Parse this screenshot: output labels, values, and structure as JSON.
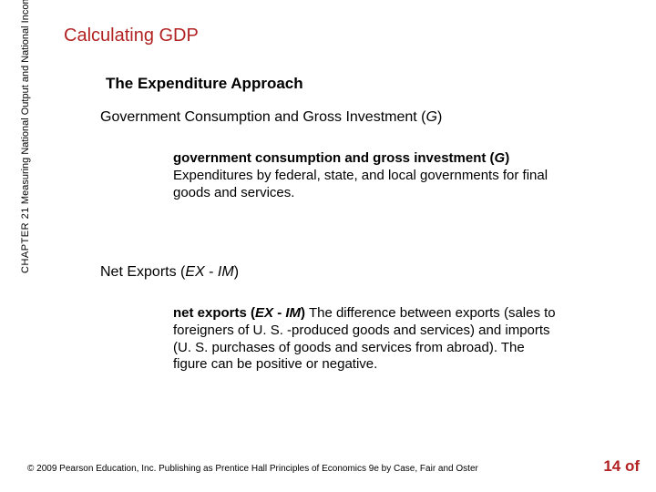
{
  "colors": {
    "accent": "#b22222",
    "text": "#000000",
    "background": "#ffffff"
  },
  "sidebar": {
    "chapter_label": "CHAPTER 21",
    "chapter_title": "Measuring National Output and National Income"
  },
  "title": "Calculating GDP",
  "subtitle": "The Expenditure Approach",
  "section1": {
    "heading_plain": "Government Consumption and Gross Investment (",
    "heading_var": "G",
    "heading_tail": ")",
    "term_plain": "government consumption and gross investment (",
    "term_var": "G",
    "term_tail": ")",
    "body": "  Expenditures by federal, state, and local governments for final goods and services."
  },
  "section2": {
    "heading_plain": "Net Exports (",
    "heading_var1": "EX",
    "heading_mid": " - ",
    "heading_var2": "IM",
    "heading_tail": ")",
    "term_plain": "net exports (",
    "term_var1": "EX",
    "term_mid": " - ",
    "term_var2": "IM",
    "term_tail": ")",
    "body": "  The difference between exports (sales to foreigners of U. S. -produced goods and services) and imports (U. S. purchases of goods and services from abroad). The figure can be positive or negative."
  },
  "footer": "© 2009 Pearson Education, Inc. Publishing as Prentice Hall   Principles of Economics 9e by Case, Fair and Oster",
  "page_num": "14 of"
}
